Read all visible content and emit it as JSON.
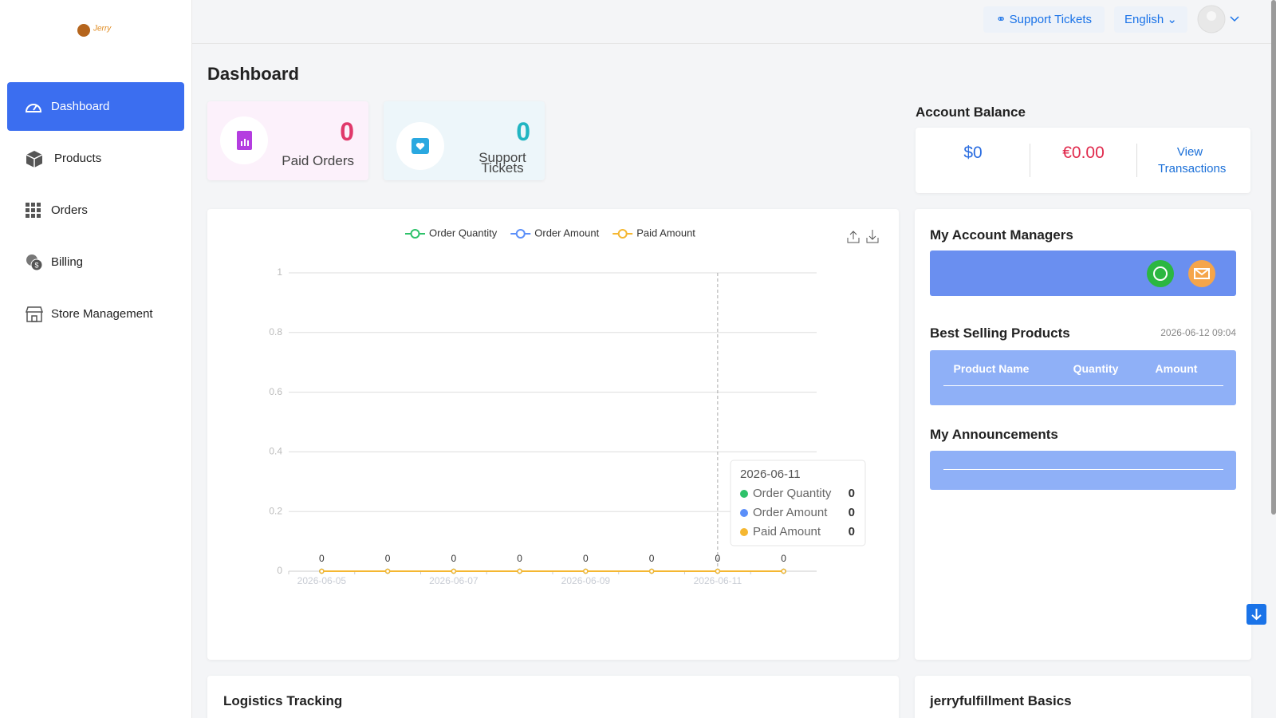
{
  "header": {
    "support": "Support Tickets",
    "language": "English"
  },
  "nav": [
    "Dashboard",
    "Products",
    "Orders",
    "Billing",
    "Store Management"
  ],
  "page_title": "Dashboard",
  "stats": [
    {
      "value": 0,
      "label": "Paid Orders"
    },
    {
      "value": 0,
      "label": "Support Tickets"
    }
  ],
  "balance": {
    "title": "Account Balance",
    "usd": "$0",
    "eur": "€0.00",
    "link": "View Transactions"
  },
  "chart": {
    "type": "line",
    "categories": [
      "2026-06-05",
      null,
      "2026-06-07",
      null,
      "2026-06-09",
      null,
      "2026-06-11",
      null
    ],
    "series": [
      {
        "name": "Order Quantity",
        "color": "#2ec26a",
        "values": [
          0,
          0,
          0,
          0,
          0,
          0,
          0,
          0
        ]
      },
      {
        "name": "Order Amount",
        "color": "#5b8ff9",
        "values": [
          0,
          0,
          0,
          0,
          0,
          0,
          0,
          0
        ]
      },
      {
        "name": "Paid Amount",
        "color": "#f5b731",
        "values": [
          0,
          0,
          0,
          0,
          0,
          0,
          0,
          0
        ]
      }
    ],
    "ylim": [
      0,
      1
    ],
    "yticks": [
      0,
      0.2,
      0.4,
      0.6,
      0.8,
      1
    ],
    "grid": true,
    "tooltip": {
      "category": "2026-06-11"
    }
  },
  "managers": {
    "title": "My Account Managers"
  },
  "best_selling": {
    "title": "Best Selling Products",
    "time": "2026-06-12 09:04",
    "columns": [
      "Product Name",
      "Quantity",
      "Amount"
    ]
  },
  "announcements": {
    "title": "My Announcements"
  },
  "bottom": {
    "logistics": "Logistics Tracking",
    "basics": "jerryfulfillment Basics"
  }
}
